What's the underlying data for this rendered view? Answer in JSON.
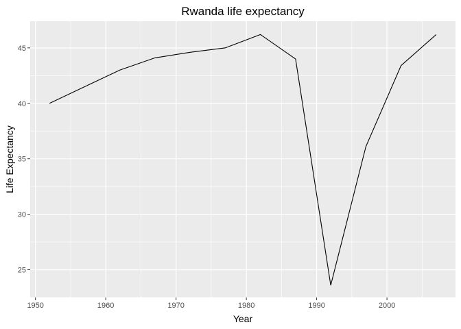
{
  "chart_data": {
    "type": "line",
    "title": "Rwanda life expectancy",
    "xlabel": "Year",
    "ylabel": "Life Expectancy",
    "xlim": [
      1949.25,
      2009.75
    ],
    "ylim": [
      22.5,
      47.4
    ],
    "xticks": [
      1950,
      1960,
      1970,
      1980,
      1990,
      2000
    ],
    "yticks": [
      25,
      30,
      35,
      40,
      45
    ],
    "grid": true,
    "colors": {
      "panel": "#ebebeb",
      "grid_major": "#ffffff",
      "line": "#000000",
      "tick_text": "#4d4d4d"
    },
    "series": [
      {
        "x": [
          1952,
          1957,
          1962,
          1967,
          1972,
          1977,
          1982,
          1987,
          1992,
          1997,
          2002,
          2007
        ],
        "y": [
          40.0,
          41.5,
          43.0,
          44.1,
          44.6,
          45.0,
          46.2,
          44.0,
          23.6,
          36.1,
          43.4,
          46.2
        ]
      }
    ]
  }
}
